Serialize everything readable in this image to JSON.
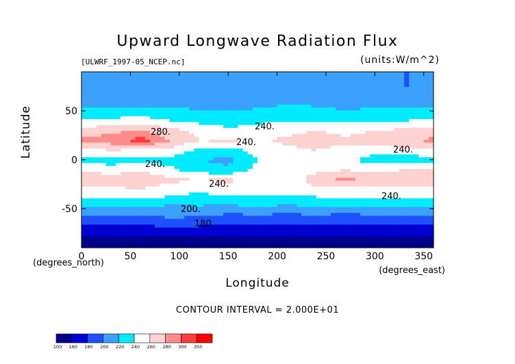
{
  "chart_data": {
    "type": "heatmap",
    "title": "Upward Longwave Radiation Flux",
    "subtitle_left": "[ULWRF_1997-05_NCEP.nc]",
    "subtitle_right": "(units:W/m^2)",
    "xlabel": "Longitude",
    "ylabel": "Latitude",
    "x_unit_label": "(degrees_east)",
    "y_unit_label": "(degrees_north)",
    "xlim": [
      0,
      360
    ],
    "ylim": [
      -90,
      90
    ],
    "x_ticks": [
      "0",
      "50",
      "100",
      "150",
      "200",
      "250",
      "300",
      "350"
    ],
    "y_ticks": [
      "50",
      "0",
      "-50"
    ],
    "contour_interval_text": "CONTOUR INTERVAL = 2.000E+01",
    "contour_labels": [
      "240.",
      "240.",
      "240.",
      "240.",
      "240.",
      "240.",
      "200.",
      "180.",
      "280."
    ],
    "colorbar": {
      "levels": [
        "100",
        "160",
        "180",
        "200",
        "220",
        "240",
        "260",
        "280",
        "300",
        "350"
      ],
      "colors": [
        "#00008c",
        "#0000d2",
        "#1e50ff",
        "#3ca0ff",
        "#00ebff",
        "#ffffff",
        "#ffd2d2",
        "#ff8c8c",
        "#ff3c3c",
        "#ff0000"
      ]
    },
    "latitudes": [
      -90,
      -75,
      -60,
      -50,
      -40,
      -30,
      -20,
      -10,
      0,
      10,
      20,
      30,
      40,
      50,
      60,
      75,
      90
    ],
    "longitudes": [
      0,
      30,
      60,
      90,
      120,
      150,
      180,
      210,
      240,
      270,
      300,
      330,
      360
    ],
    "values": [
      [
        130,
        130,
        130,
        130,
        130,
        130,
        130,
        130,
        130,
        130,
        130,
        130,
        130
      ],
      [
        165,
        165,
        165,
        165,
        165,
        165,
        165,
        165,
        165,
        165,
        165,
        165,
        165
      ],
      [
        190,
        190,
        190,
        200,
        195,
        190,
        190,
        190,
        190,
        190,
        190,
        190,
        190
      ],
      [
        215,
        215,
        215,
        210,
        215,
        210,
        215,
        210,
        215,
        210,
        215,
        215,
        215
      ],
      [
        235,
        235,
        240,
        235,
        230,
        235,
        235,
        235,
        235,
        240,
        235,
        235,
        235
      ],
      [
        255,
        255,
        260,
        250,
        245,
        250,
        245,
        250,
        255,
        250,
        255,
        255,
        255
      ],
      [
        275,
        270,
        275,
        265,
        260,
        265,
        250,
        245,
        270,
        285,
        270,
        280,
        275
      ],
      [
        260,
        250,
        260,
        245,
        230,
        225,
        245,
        255,
        255,
        260,
        255,
        260,
        260
      ],
      [
        235,
        230,
        235,
        230,
        220,
        215,
        240,
        250,
        250,
        245,
        230,
        225,
        235
      ],
      [
        250,
        260,
        255,
        255,
        235,
        230,
        250,
        255,
        260,
        250,
        250,
        255,
        250
      ],
      [
        285,
        290,
        310,
        280,
        260,
        265,
        255,
        265,
        270,
        265,
        270,
        275,
        285
      ],
      [
        270,
        275,
        280,
        270,
        255,
        245,
        250,
        255,
        260,
        255,
        260,
        265,
        270
      ],
      [
        245,
        245,
        250,
        240,
        235,
        230,
        235,
        240,
        235,
        240,
        235,
        240,
        245
      ],
      [
        225,
        225,
        230,
        225,
        220,
        220,
        225,
        230,
        225,
        220,
        225,
        225,
        225
      ],
      [
        215,
        215,
        210,
        215,
        215,
        200,
        210,
        215,
        215,
        215,
        210,
        205,
        215
      ],
      [
        200,
        205,
        205,
        200,
        205,
        205,
        205,
        200,
        205,
        205,
        205,
        200,
        200
      ],
      [
        200,
        200,
        200,
        200,
        200,
        200,
        200,
        200,
        200,
        200,
        200,
        200,
        200
      ]
    ]
  }
}
